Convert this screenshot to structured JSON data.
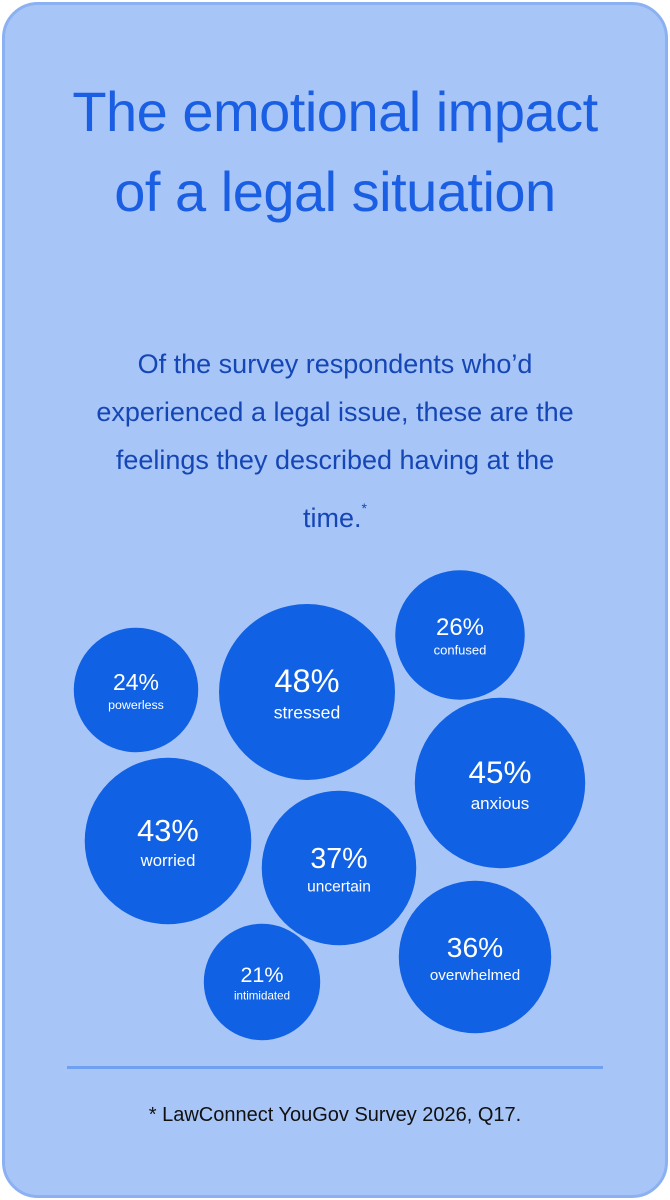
{
  "chart_data": {
    "type": "bubble",
    "title": "The emotional impact of a legal situation",
    "subtitle": "Of the survey respondents who’d experienced a legal issue, these are the feelings they described having at the time.",
    "subtitle_marker": "*",
    "categories": [
      "stressed",
      "confused",
      "powerless",
      "anxious",
      "worried",
      "uncertain",
      "overwhelmed",
      "intimidated"
    ],
    "values": [
      48,
      26,
      24,
      45,
      43,
      37,
      36,
      21
    ],
    "value_labels": [
      "48%",
      "26%",
      "24%",
      "45%",
      "43%",
      "37%",
      "36%",
      "21%"
    ],
    "color": "#1061e3",
    "footnote": "* LawConnect YouGov Survey 2026, Q17."
  }
}
